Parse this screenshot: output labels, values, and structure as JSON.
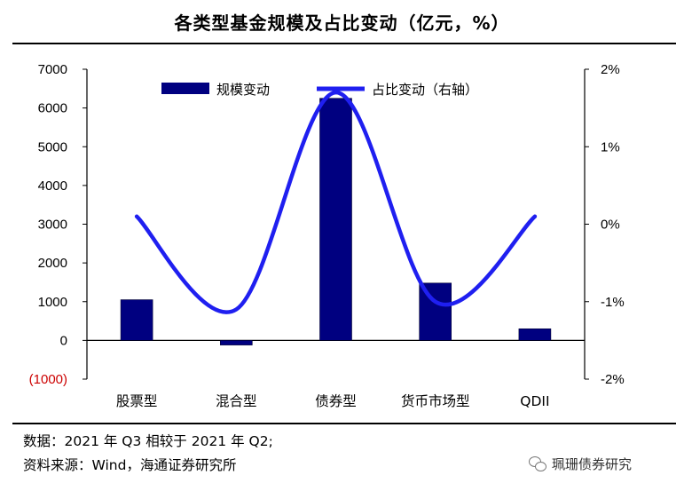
{
  "chart_data": {
    "type": "bar+line",
    "title": "各类型基金规模及占比变动（亿元，%）",
    "categories": [
      "股票型",
      "混合型",
      "债券型",
      "货币市场型",
      "QDII"
    ],
    "series": [
      {
        "name": "规模变动",
        "type": "bar",
        "axis": "left",
        "color": "#000080",
        "values": [
          1050,
          -120,
          6250,
          1480,
          300
        ]
      },
      {
        "name": "占比变动（右轴）",
        "type": "line",
        "axis": "right",
        "color": "#1f1ff0",
        "smooth": true,
        "values": [
          0.1,
          -1.1,
          1.7,
          -1.0,
          0.1
        ]
      }
    ],
    "left_axis": {
      "ylim": [
        -1000,
        7000
      ],
      "ticks": [
        {
          "value": 7000,
          "label": "7000",
          "color": "#000000"
        },
        {
          "value": 6000,
          "label": "6000",
          "color": "#000000"
        },
        {
          "value": 5000,
          "label": "5000",
          "color": "#000000"
        },
        {
          "value": 4000,
          "label": "4000",
          "color": "#000000"
        },
        {
          "value": 3000,
          "label": "3000",
          "color": "#000000"
        },
        {
          "value": 2000,
          "label": "2000",
          "color": "#000000"
        },
        {
          "value": 1000,
          "label": "1000",
          "color": "#000000"
        },
        {
          "value": 0,
          "label": "0",
          "color": "#000000"
        },
        {
          "value": -1000,
          "label": "(1000)",
          "color": "#cc0000"
        }
      ]
    },
    "right_axis": {
      "ylim": [
        -2,
        2
      ],
      "ticks": [
        {
          "value": 2,
          "label": "2%"
        },
        {
          "value": 1,
          "label": "1%"
        },
        {
          "value": 0,
          "label": "0%"
        },
        {
          "value": -1,
          "label": "-1%"
        },
        {
          "value": -2,
          "label": "-2%"
        }
      ]
    },
    "legend_position": "top",
    "grid": false
  },
  "notes": {
    "line1": "数据：2021 年 Q3 相较于 2021 年 Q2;",
    "line2": "资料来源：Wind，海通证券研究所"
  },
  "watermark": {
    "text": "珮珊债券研究",
    "icon": "wechat-icon"
  }
}
